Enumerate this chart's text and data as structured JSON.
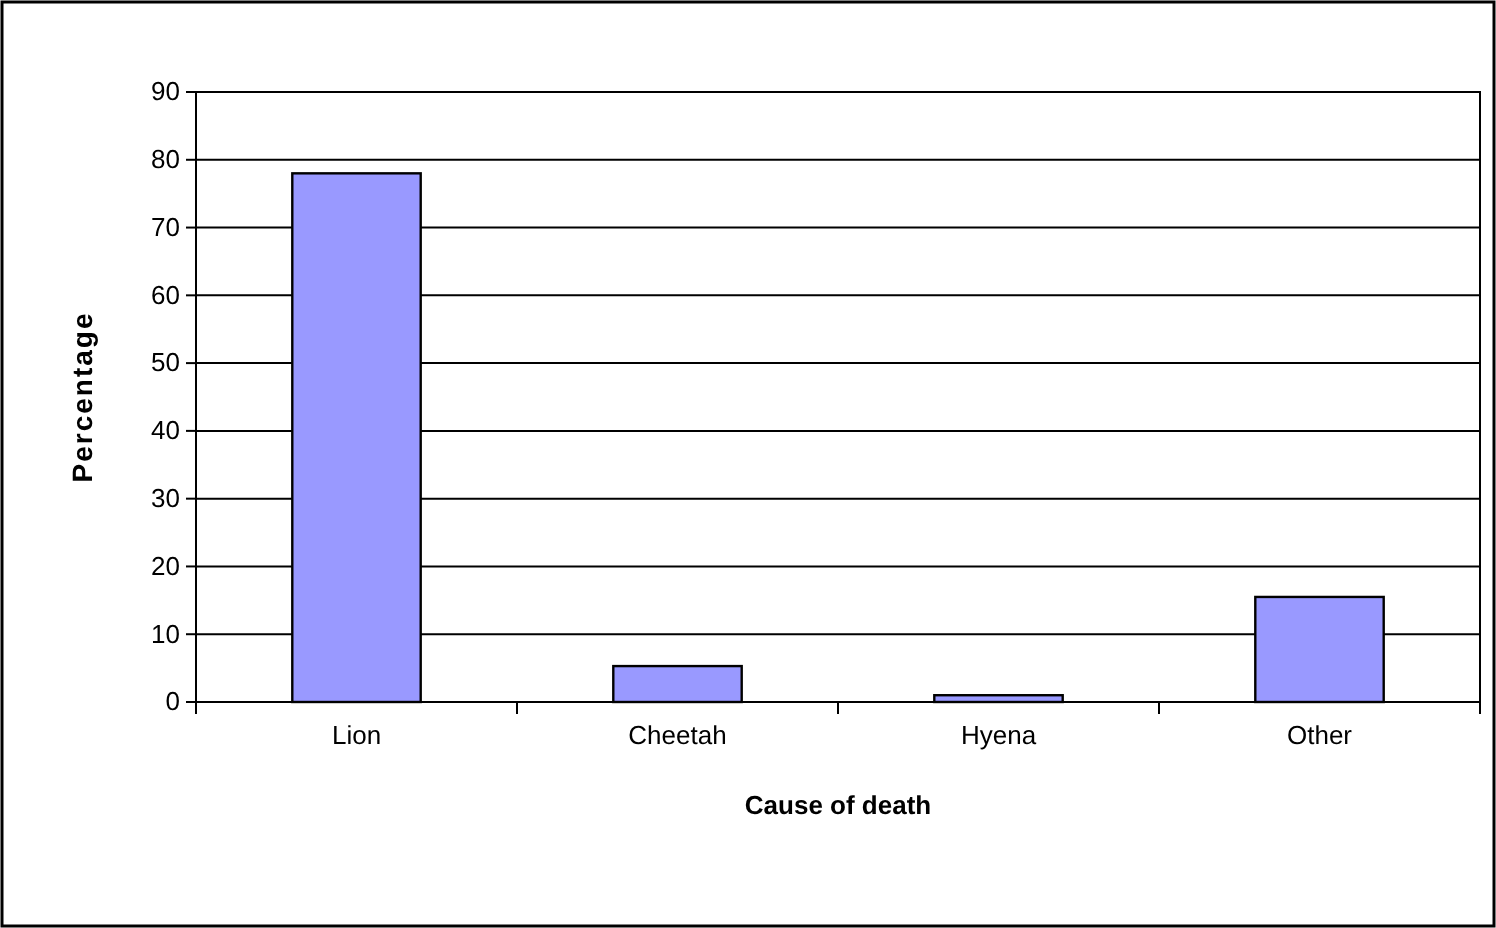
{
  "chart_data": {
    "type": "bar",
    "xlabel": "Cause of death",
    "ylabel": "Percentage",
    "categories": [
      "Lion",
      "Cheetah",
      "Hyena",
      "Other"
    ],
    "values": [
      78,
      5.3,
      1,
      15.5
    ],
    "color": "#9999ff",
    "ylim": [
      0,
      90
    ],
    "yticks": [
      0,
      10,
      20,
      30,
      40,
      50,
      60,
      70,
      80,
      90
    ],
    "grid": "y"
  }
}
